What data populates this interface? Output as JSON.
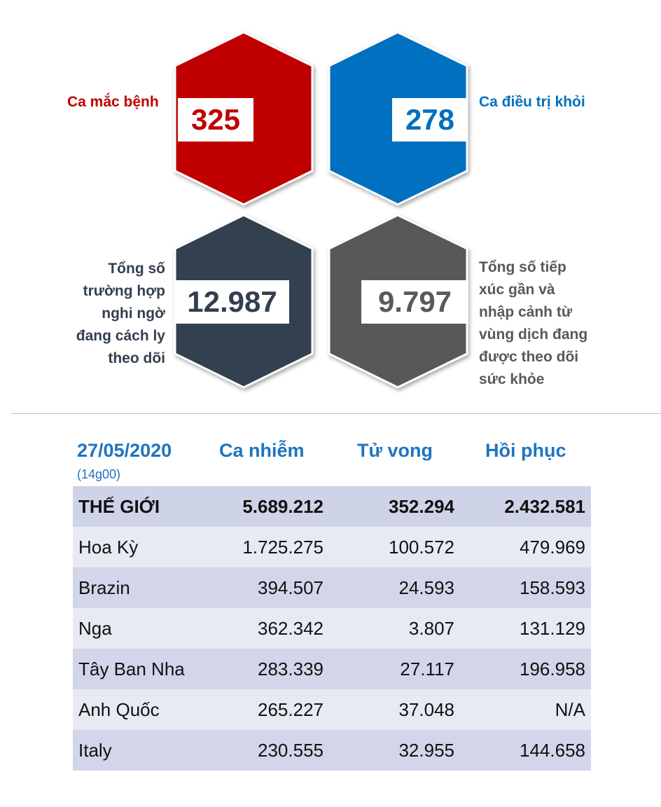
{
  "stats": {
    "cases": {
      "label": "Ca mắc bệnh",
      "value": "325",
      "color": "#c00000"
    },
    "recovered": {
      "label": "Ca điều trị khỏi",
      "value": "278",
      "color": "#0070c0"
    },
    "quarantine": {
      "label_lines": [
        "Tổng số",
        "trường hợp",
        "nghi ngờ",
        "đang cách ly",
        "theo dõi"
      ],
      "value": "12.987",
      "color": "#333f50"
    },
    "monitoring": {
      "label_lines": [
        "Tổng số tiếp",
        "xúc gần và",
        "nhập cảnh từ",
        "vùng dịch đang",
        "được theo dõi",
        "sức khỏe"
      ],
      "value": "9.797",
      "color": "#595959"
    }
  },
  "table": {
    "date": "27/05/2020",
    "time": "(14g00)",
    "headers": [
      "Ca nhiễm",
      "Tử vong",
      "Hồi phục"
    ],
    "rows": [
      {
        "name": "THẾ GIỚI",
        "cases": "5.689.212",
        "deaths": "352.294",
        "recovered": "2.432.581"
      },
      {
        "name": "Hoa Kỳ",
        "cases": "1.725.275",
        "deaths": "100.572",
        "recovered": "479.969"
      },
      {
        "name": "Brazin",
        "cases": "394.507",
        "deaths": "24.593",
        "recovered": "158.593"
      },
      {
        "name": "Nga",
        "cases": "362.342",
        "deaths": "3.807",
        "recovered": "131.129"
      },
      {
        "name": "Tây Ban Nha",
        "cases": "283.339",
        "deaths": "27.117",
        "recovered": "196.958"
      },
      {
        "name": "Anh Quốc",
        "cases": "265.227",
        "deaths": "37.048",
        "recovered": "N/A"
      },
      {
        "name": "Italy",
        "cases": "230.555",
        "deaths": "32.955",
        "recovered": "144.658"
      }
    ]
  },
  "chart_data": {
    "type": "table",
    "columns": [
      "27/05/2020",
      "Ca nhiễm",
      "Tử vong",
      "Hồi phục"
    ],
    "rows": [
      [
        "THẾ GIỚI",
        5689212,
        352294,
        2432581
      ],
      [
        "Hoa Kỳ",
        1725275,
        100572,
        479969
      ],
      [
        "Brazin",
        394507,
        24593,
        158593
      ],
      [
        "Nga",
        362342,
        3807,
        131129
      ],
      [
        "Tây Ban Nha",
        283339,
        27117,
        196958
      ],
      [
        "Anh Quốc",
        265227,
        37048,
        null
      ],
      [
        "Italy",
        230555,
        32955,
        144658
      ]
    ]
  }
}
